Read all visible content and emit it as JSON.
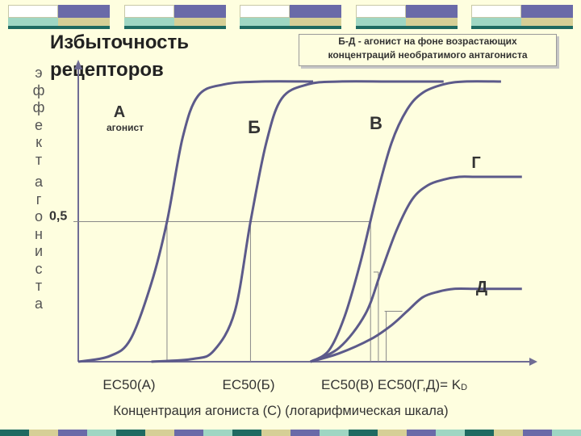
{
  "title_line1": "Избыточность",
  "title_line2": "рецепторов",
  "vertical_label_letters": [
    "э",
    "ф",
    "ф",
    "е",
    "к",
    "т",
    "а",
    "г",
    "о",
    "н",
    "и",
    "с",
    "т",
    "а"
  ],
  "note_line1": "Б-Д - агонист на фоне возрастающих",
  "note_line2": "концентраций необратимого антагониста",
  "y_tick_label": "0,5",
  "xlabel": "Концентрация агониста (С) (логарифмическая шкала)",
  "ec50_labels": [
    "EC50(A)",
    "EC50(Б)",
    "EC50(B) EC50(Г,Д)= K"
  ],
  "kd_subscript": "D",
  "colors": {
    "background": "#fefedf",
    "curve": "#5c5a8a",
    "axis": "#6f6c94",
    "accent": "#1e6a61"
  },
  "chart_data": {
    "type": "line",
    "xscale": "log",
    "ylim": [
      0,
      1
    ],
    "y_ticks": [
      0.5
    ],
    "series": [
      {
        "name": "А",
        "sublabel": "агонист",
        "x": [
          -4.0,
          -3.4,
          -3.0,
          -2.6,
          -2.3,
          -2.0,
          -1.7,
          -1.2,
          -0.5,
          0.5
        ],
        "y": [
          0.0,
          0.02,
          0.08,
          0.28,
          0.5,
          0.8,
          0.95,
          0.99,
          1.0,
          1.0
        ]
      },
      {
        "name": "Б",
        "x": [
          -2.6,
          -1.8,
          -1.4,
          -1.0,
          -0.7,
          -0.4,
          -0.1,
          0.4,
          1.0,
          2.0,
          3.0
        ],
        "y": [
          0.0,
          0.01,
          0.04,
          0.18,
          0.5,
          0.78,
          0.94,
          0.99,
          1.0,
          1.0,
          1.0
        ]
      },
      {
        "name": "В",
        "x": [
          0.45,
          0.8,
          1.1,
          1.4,
          1.7,
          2.0,
          2.3,
          2.6,
          3.0,
          3.4,
          4.1
        ],
        "y": [
          0.0,
          0.04,
          0.16,
          0.35,
          0.58,
          0.78,
          0.9,
          0.96,
          0.99,
          1.0,
          1.0
        ]
      },
      {
        "name": "Г",
        "x": [
          0.45,
          1.0,
          1.5,
          1.8,
          2.1,
          2.4,
          2.7,
          3.0,
          3.3,
          3.6,
          4.0,
          4.5
        ],
        "y": [
          0.0,
          0.05,
          0.17,
          0.32,
          0.47,
          0.58,
          0.63,
          0.65,
          0.66,
          0.66,
          0.66,
          0.66
        ]
      },
      {
        "name": "Д",
        "x": [
          0.45,
          1.0,
          1.6,
          2.0,
          2.3,
          2.6,
          2.9,
          3.2,
          3.6,
          4.0,
          4.5
        ],
        "y": [
          0.0,
          0.03,
          0.08,
          0.13,
          0.18,
          0.23,
          0.25,
          0.26,
          0.26,
          0.26,
          0.26
        ]
      }
    ],
    "ec50": [
      {
        "label": "EC50(A)",
        "x": -2.3
      },
      {
        "label": "EC50(Б)",
        "x": -0.7
      },
      {
        "label": "EC50(B)",
        "x": 1.6
      },
      {
        "label": "EC50(Г,Д)",
        "x": 1.75
      }
    ]
  }
}
